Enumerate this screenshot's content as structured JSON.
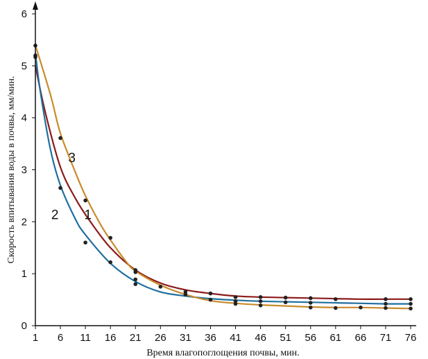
{
  "chart_data": {
    "type": "scatter",
    "title": "",
    "xlabel": "Время влагопоглощения почвы, мин.",
    "ylabel": "Скорость впитывания воды в почвы, мм/мин.",
    "xlim": [
      1,
      76
    ],
    "ylim": [
      0,
      6
    ],
    "xticks": [
      1,
      6,
      11,
      16,
      21,
      26,
      31,
      36,
      41,
      46,
      51,
      56,
      61,
      66,
      71,
      76
    ],
    "yticks": [
      0,
      1,
      2,
      3,
      4,
      5,
      6
    ],
    "grid": false,
    "legend": "none",
    "series": [
      {
        "label": "1",
        "color": "#8b1a1a",
        "points": [
          [
            1,
            5.2
          ],
          [
            21,
            1.07
          ],
          [
            31,
            0.65
          ],
          [
            36,
            0.62
          ],
          [
            41,
            0.55
          ],
          [
            46,
            0.55
          ],
          [
            51,
            0.54
          ],
          [
            56,
            0.53
          ],
          [
            61,
            0.51
          ],
          [
            71,
            0.51
          ],
          [
            76,
            0.51
          ]
        ],
        "curve": [
          [
            1,
            5.0
          ],
          [
            3,
            4.1
          ],
          [
            6,
            3.05
          ],
          [
            9,
            2.45
          ],
          [
            12,
            2.0
          ],
          [
            16,
            1.5
          ],
          [
            21,
            1.07
          ],
          [
            26,
            0.82
          ],
          [
            31,
            0.69
          ],
          [
            36,
            0.62
          ],
          [
            41,
            0.57
          ],
          [
            46,
            0.55
          ],
          [
            51,
            0.54
          ],
          [
            56,
            0.53
          ],
          [
            61,
            0.52
          ],
          [
            66,
            0.51
          ],
          [
            71,
            0.51
          ],
          [
            76,
            0.51
          ]
        ]
      },
      {
        "label": "2",
        "color": "#1f6f9e",
        "points": [
          [
            1,
            5.17
          ],
          [
            6,
            2.65
          ],
          [
            11,
            1.6
          ],
          [
            16,
            1.22
          ],
          [
            21,
            0.89
          ],
          [
            21,
            0.8
          ],
          [
            31,
            0.6
          ],
          [
            36,
            0.5
          ],
          [
            41,
            0.47
          ],
          [
            46,
            0.47
          ],
          [
            51,
            0.45
          ],
          [
            56,
            0.44
          ],
          [
            71,
            0.42
          ],
          [
            76,
            0.42
          ]
        ],
        "curve": [
          [
            1,
            5.25
          ],
          [
            2,
            4.5
          ],
          [
            4,
            3.4
          ],
          [
            6,
            2.7
          ],
          [
            9,
            2.05
          ],
          [
            11,
            1.75
          ],
          [
            16,
            1.2
          ],
          [
            21,
            0.85
          ],
          [
            26,
            0.65
          ],
          [
            31,
            0.57
          ],
          [
            36,
            0.52
          ],
          [
            41,
            0.49
          ],
          [
            46,
            0.47
          ],
          [
            51,
            0.46
          ],
          [
            56,
            0.45
          ],
          [
            61,
            0.44
          ],
          [
            66,
            0.43
          ],
          [
            71,
            0.42
          ],
          [
            76,
            0.42
          ]
        ]
      },
      {
        "label": "3",
        "color": "#c98a2a",
        "points": [
          [
            1,
            5.39
          ],
          [
            6,
            3.61
          ],
          [
            11,
            2.41
          ],
          [
            16,
            1.69
          ],
          [
            21,
            1.03
          ],
          [
            26,
            0.75
          ],
          [
            41,
            0.42
          ],
          [
            46,
            0.39
          ],
          [
            56,
            0.35
          ],
          [
            61,
            0.34
          ],
          [
            66,
            0.35
          ],
          [
            71,
            0.34
          ],
          [
            76,
            0.33
          ]
        ],
        "curve": [
          [
            1,
            5.4
          ],
          [
            4,
            4.45
          ],
          [
            6,
            3.7
          ],
          [
            9,
            2.95
          ],
          [
            11,
            2.5
          ],
          [
            14,
            1.95
          ],
          [
            16,
            1.65
          ],
          [
            19,
            1.25
          ],
          [
            21,
            1.05
          ],
          [
            26,
            0.78
          ],
          [
            31,
            0.6
          ],
          [
            36,
            0.48
          ],
          [
            41,
            0.43
          ],
          [
            46,
            0.4
          ],
          [
            51,
            0.38
          ],
          [
            56,
            0.36
          ],
          [
            61,
            0.35
          ],
          [
            66,
            0.35
          ],
          [
            71,
            0.34
          ],
          [
            76,
            0.33
          ]
        ]
      }
    ],
    "annotations": [
      {
        "text": "1",
        "x": 11.5,
        "y": 2.05
      },
      {
        "text": "2",
        "x": 4.9,
        "y": 2.05
      },
      {
        "text": "3",
        "x": 8.3,
        "y": 3.15
      }
    ]
  }
}
